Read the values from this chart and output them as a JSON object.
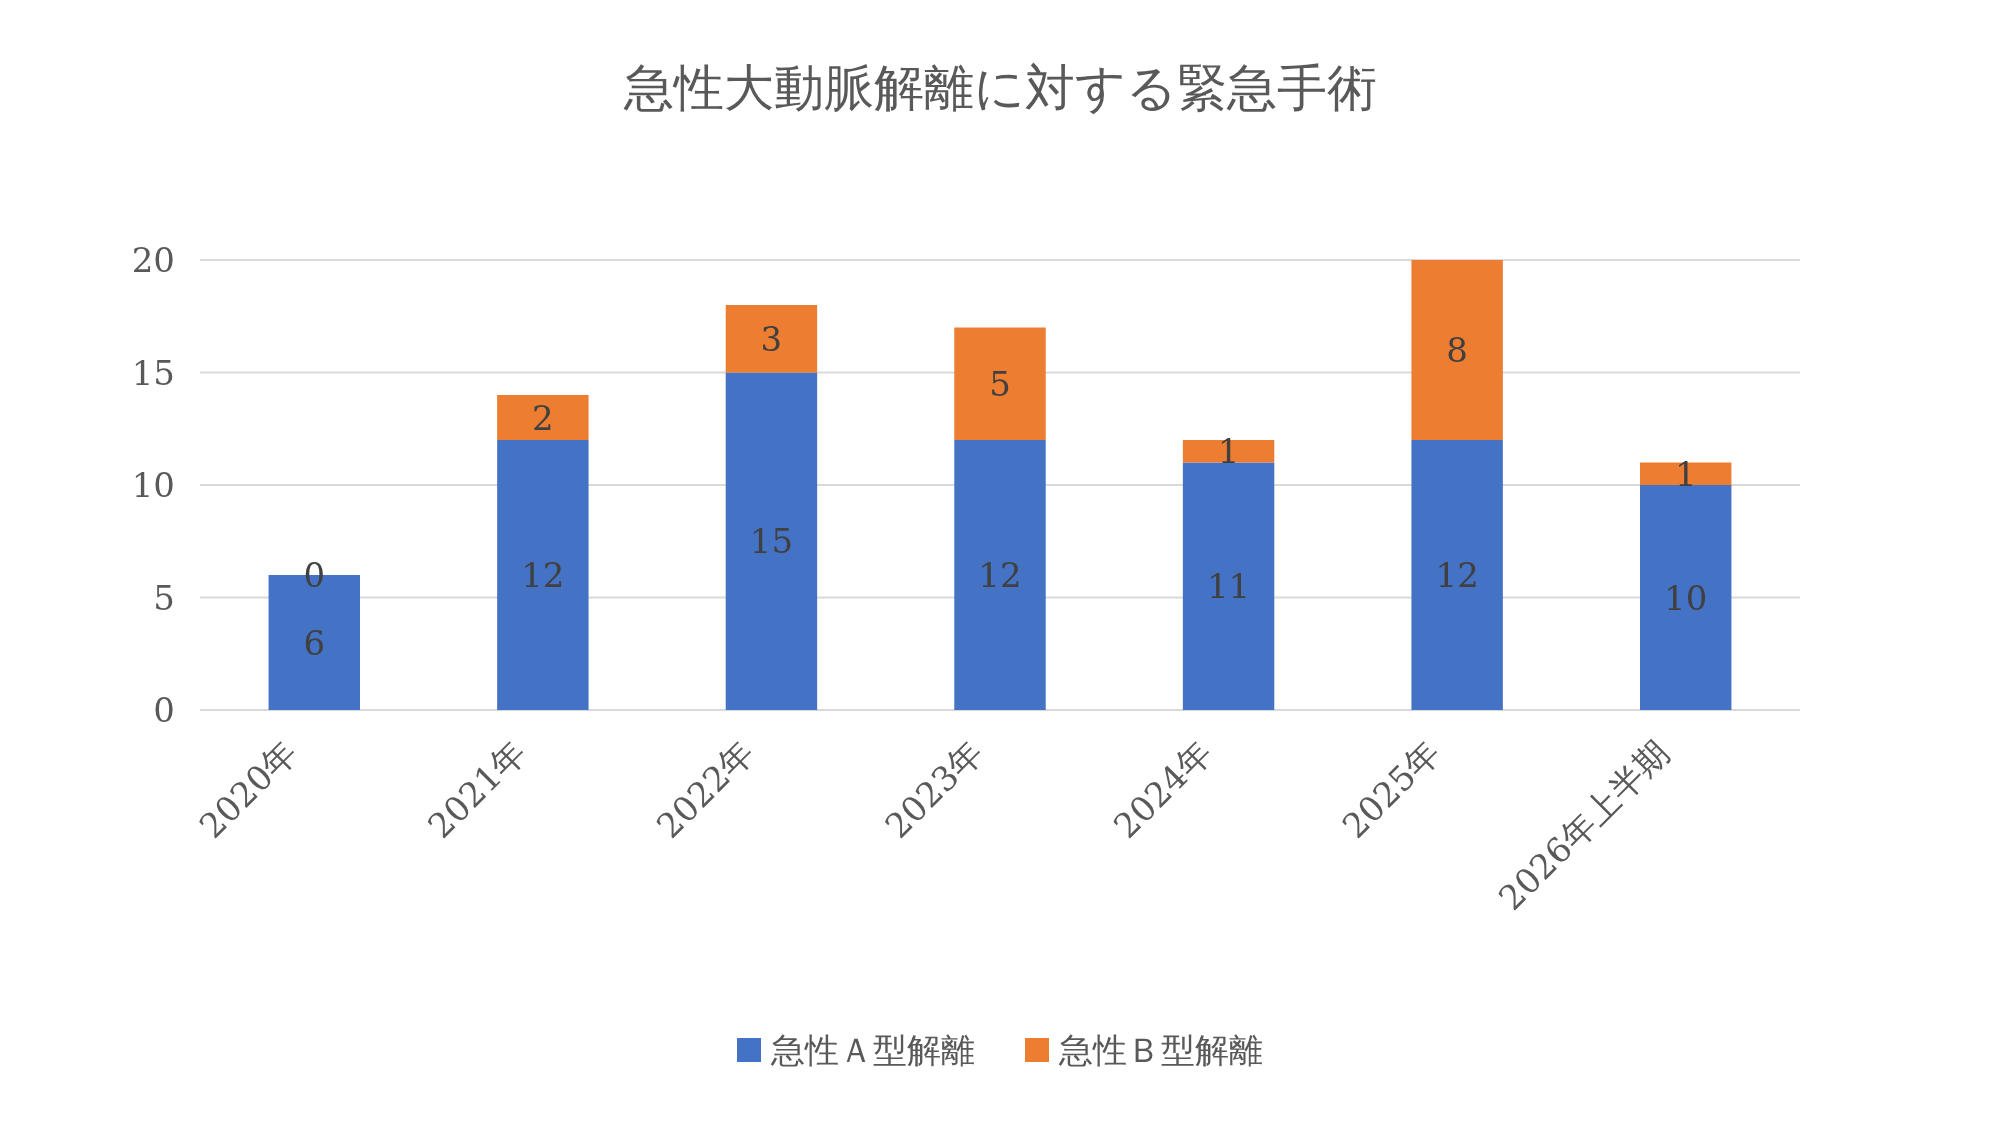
{
  "chart_data": {
    "type": "bar",
    "title": "急性大動脈解離に対する緊急手術",
    "categories": [
      "2020年",
      "2021年",
      "2022年",
      "2023年",
      "2024年",
      "2025年",
      "2026年上半期"
    ],
    "series": [
      {
        "name": "急性Ａ型解離",
        "color": "#4472c4",
        "values": [
          6,
          12,
          15,
          12,
          11,
          12,
          10
        ]
      },
      {
        "name": "急性Ｂ型解離",
        "color": "#ed7d31",
        "values": [
          0,
          2,
          3,
          5,
          1,
          8,
          1
        ]
      }
    ],
    "stacked": true,
    "ylim": [
      0,
      20
    ],
    "yticks": [
      0,
      5,
      10,
      15,
      20
    ],
    "grid": "y",
    "legend": "bottom",
    "data_labels": true
  }
}
